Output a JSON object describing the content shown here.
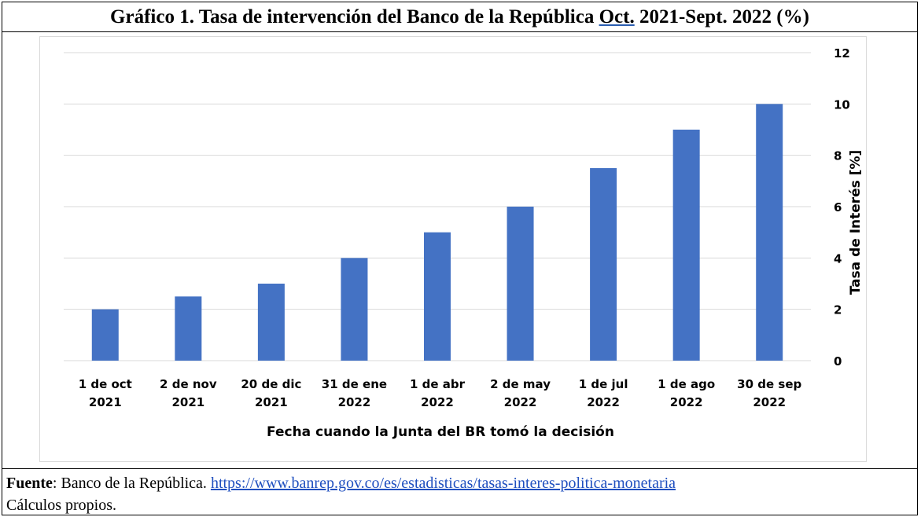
{
  "title": {
    "part1": "Gráfico 1. Tasa de intervención del Banco de la República ",
    "part2": "Oct.",
    "part3": " 2021-Sept. 2022 (%)"
  },
  "source": {
    "label": "Fuente",
    "text": ": Banco de la República. ",
    "url": "https://www.banrep.gov.co/es/estadisticas/tasas-interes-politica-monetaria",
    "line2": "Cálculos propios."
  },
  "chart_data": {
    "type": "bar",
    "categories": [
      [
        "1 de oct",
        "2021"
      ],
      [
        "2 de nov",
        "2021"
      ],
      [
        "20 de dic",
        "2021"
      ],
      [
        "31 de ene",
        "2022"
      ],
      [
        "1 de abr",
        "2022"
      ],
      [
        "2 de may",
        "2022"
      ],
      [
        "1 de jul",
        "2022"
      ],
      [
        "1 de ago",
        "2022"
      ],
      [
        "30 de sep",
        "2022"
      ]
    ],
    "values": [
      2,
      2.5,
      3,
      4,
      5,
      6,
      7.5,
      9,
      10
    ],
    "xlabel": "Fecha cuando la Junta del BR tomó la decisión",
    "ylabel": "Tasa de Interés [%]",
    "ylim": [
      0,
      12
    ],
    "yticks": [
      0,
      2,
      4,
      6,
      8,
      10,
      12
    ],
    "y_axis_side": "right",
    "grid": true,
    "bar_color": "#4472c4",
    "grid_color": "#d9d9d9"
  }
}
